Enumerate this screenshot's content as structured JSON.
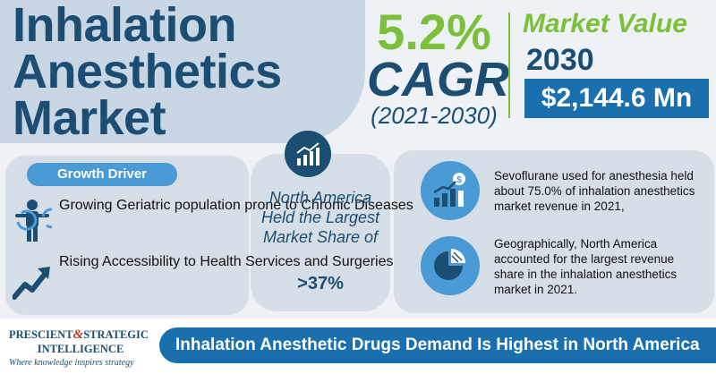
{
  "title": {
    "line1": "Inhalation",
    "line2": "Anesthetics",
    "line3": "Market"
  },
  "cagr": {
    "percent": "5.2%",
    "label": "CAGR",
    "years": "(2021-2030)"
  },
  "market_value": {
    "label": "Market Value",
    "year": "2030",
    "value": "$2,144.6 Mn"
  },
  "growth_driver": {
    "badge": "Growth Driver",
    "items": [
      {
        "text": "Growing Geriatric population prone to Chronic Diseases",
        "icon": "elderly-person-icon"
      },
      {
        "text": "Rising Accessibility to Health Services and Surgeries",
        "icon": "trend-up-arrow-icon"
      }
    ]
  },
  "region": {
    "text": "North America Held the Largest Market Share of",
    "value": ">37%",
    "icon": "bar-chart-growth-icon"
  },
  "highlights": [
    {
      "text": "Sevoflurane used for anesthesia held about 75.0% of inhalation anesthetics market revenue in 2021,",
      "icon": "money-growth-chart-icon"
    },
    {
      "text": "Geographically, North America accounted for the largest revenue share in the inhalation anesthetics market in 2021.",
      "icon": "pie-chart-icon"
    }
  ],
  "footer": {
    "logo_line1_a": "PRESCIENT",
    "logo_amp": "&",
    "logo_line1_b": "STRATEGIC",
    "logo_line2": "INTELLIGENCE",
    "tagline": "Where knowledge inspires strategy",
    "banner": "Inhalation Anesthetic Drugs Demand Is Highest in North America"
  },
  "colors": {
    "navy": "#1c4d72",
    "green": "#7cbf3b",
    "blue": "#1a6fae",
    "light_blue": "#4a9ad6"
  }
}
